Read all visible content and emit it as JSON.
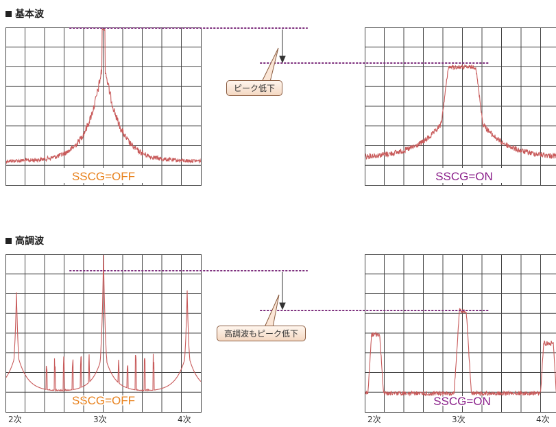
{
  "section_fundamental": {
    "marker": "■",
    "title": "基本波"
  },
  "section_harmonic": {
    "marker": "■",
    "title": "高調波"
  },
  "label_off": "SSCG=OFF",
  "label_on": "SSCG=ON",
  "callout_fundamental": "ピーク低下",
  "callout_harmonic": "高調波もピーク低下",
  "xlabels": [
    "2次",
    "3次",
    "4次"
  ],
  "colors": {
    "trace": "#c85a5a",
    "grid": "#444444",
    "dots": "#7a2a7a",
    "off_label": "#e8821e",
    "on_label": "#8a1f8a",
    "callout_border": "#8a5c40"
  }
}
